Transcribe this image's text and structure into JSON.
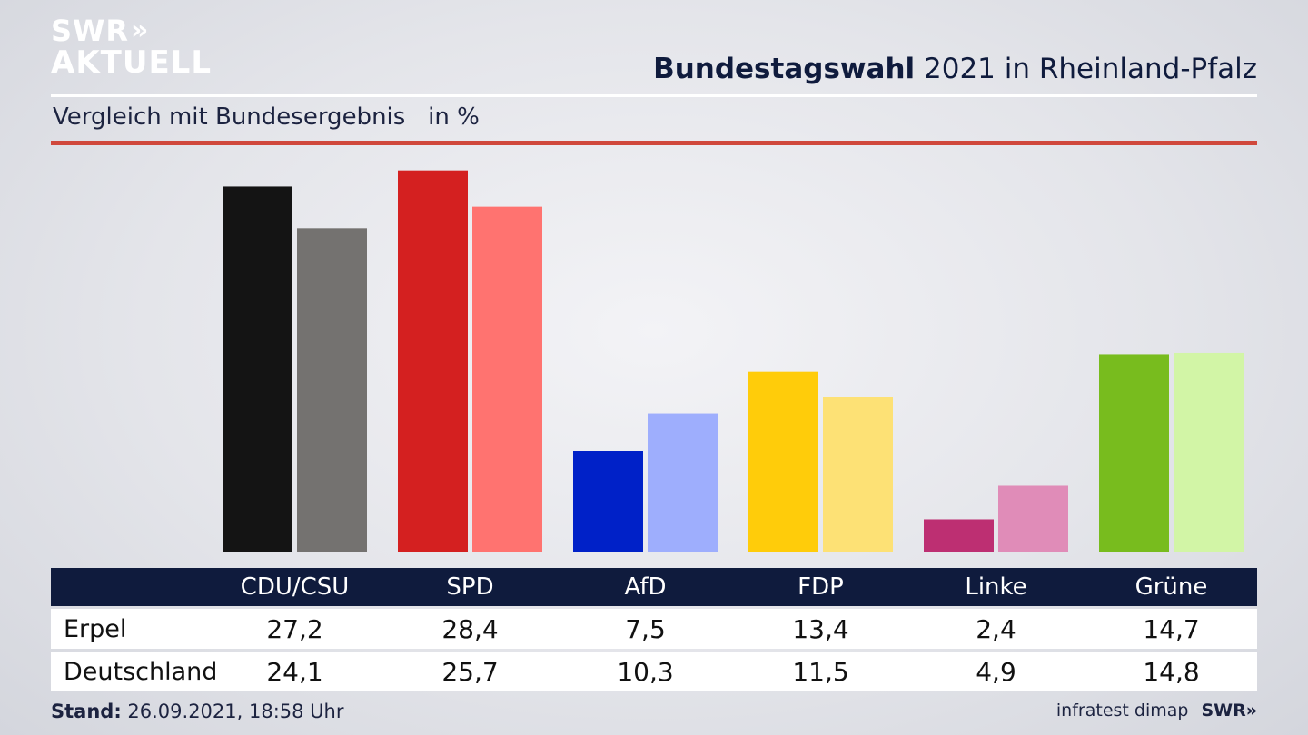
{
  "logo": {
    "line1": "SWR",
    "arrows": "»",
    "line2": "AKTUELL"
  },
  "header": {
    "title_bold": "Bundestagswahl",
    "title_rest": " 2021 in Rheinland-Pfalz",
    "subtitle": "Vergleich mit Bundesergebnis   in %"
  },
  "chart_data": {
    "type": "bar",
    "categories": [
      "CDU/CSU",
      "SPD",
      "AfD",
      "FDP",
      "Linke",
      "Grüne"
    ],
    "series": [
      {
        "name": "Erpel",
        "values": [
          27.2,
          28.4,
          7.5,
          13.4,
          2.4,
          14.7
        ]
      },
      {
        "name": "Deutschland",
        "values": [
          24.1,
          25.7,
          10.3,
          11.5,
          4.9,
          14.8
        ]
      }
    ],
    "colors": {
      "Erpel": [
        "#141414",
        "#d42020",
        "#0021c8",
        "#ffcc0a",
        "#bd2f72",
        "#78bc1e"
      ],
      "Deutschland": [
        "#747270",
        "#ff7370",
        "#9eaefd",
        "#fde175",
        "#e08cb8",
        "#d2f5a6"
      ]
    },
    "ylim": [
      0,
      30
    ],
    "grid": false,
    "legend": "table-below"
  },
  "footer": {
    "stand_label": "Stand:",
    "stand_value": " 26.09.2021, 18:58 Uhr",
    "source": "infratest dimap",
    "brand": "SWR»"
  }
}
